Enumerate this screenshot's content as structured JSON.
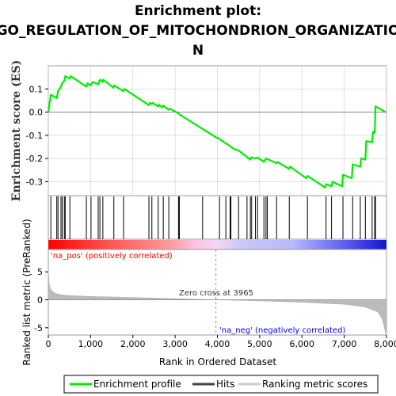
{
  "chart_data": {
    "type": "line",
    "title_lines": [
      "Enrichment plot:",
      "GO_REGULATION_OF_MITOCHONDRION_ORGANIZATIO",
      "N"
    ],
    "es_panel": {
      "ylabel": "Enrichment score (ES)",
      "ylim": [
        -0.36,
        0.2
      ],
      "yticks": [
        0.1,
        0.0,
        -0.1,
        -0.2,
        -0.3
      ],
      "ytick_labels": [
        "0.1",
        "0.0",
        "-0.1",
        "-0.2",
        "-0.3"
      ],
      "series_name": "Enrichment profile",
      "color": "#00ee00",
      "x": [
        0,
        60,
        200,
        230,
        300,
        330,
        380,
        400,
        500,
        530,
        900,
        930,
        1000,
        1050,
        1180,
        1220,
        1290,
        1300,
        1540,
        1560,
        1780,
        1800,
        2380,
        2400,
        2450,
        2470,
        2600,
        2620,
        2700,
        2720,
        2850,
        2870,
        3080,
        3100,
        3980,
        4000,
        4200,
        4250,
        4400,
        4500,
        4780,
        4800,
        4900,
        4950,
        5100,
        5150,
        5400,
        5420,
        5700,
        5720,
        6100,
        6130,
        6550,
        6570,
        6700,
        6720,
        6950,
        6970,
        7180,
        7200,
        7380,
        7400,
        7500,
        7520,
        7660,
        7680,
        7720,
        7740,
        7980
      ],
      "y": [
        0.0,
        0.075,
        0.06,
        0.09,
        0.11,
        0.125,
        0.135,
        0.155,
        0.145,
        0.155,
        0.11,
        0.125,
        0.115,
        0.13,
        0.12,
        0.14,
        0.13,
        0.14,
        0.105,
        0.115,
        0.09,
        0.1,
        0.03,
        0.04,
        0.035,
        0.04,
        0.025,
        0.032,
        0.02,
        0.028,
        0.01,
        0.015,
        -0.005,
        -0.01,
        -0.11,
        -0.11,
        -0.135,
        -0.14,
        -0.16,
        -0.165,
        -0.205,
        -0.195,
        -0.2,
        -0.195,
        -0.215,
        -0.2,
        -0.22,
        -0.215,
        -0.245,
        -0.235,
        -0.285,
        -0.275,
        -0.325,
        -0.31,
        -0.32,
        -0.3,
        -0.32,
        -0.27,
        -0.285,
        -0.225,
        -0.235,
        -0.2,
        -0.205,
        -0.125,
        -0.13,
        -0.085,
        -0.09,
        0.025,
        0.0
      ]
    },
    "hits": {
      "label": "Hits",
      "positions": [
        60,
        200,
        230,
        300,
        330,
        380,
        400,
        510,
        900,
        1010,
        1180,
        1220,
        1290,
        1550,
        1780,
        2380,
        2450,
        2600,
        2720,
        2850,
        3080,
        3100,
        3650,
        4050,
        4200,
        4300,
        4320,
        4500,
        4700,
        4780,
        4810,
        4900,
        4950,
        5100,
        5150,
        5180,
        5400,
        5700,
        6130,
        6570,
        6700,
        6970,
        7200,
        7380,
        7500,
        7660,
        7720,
        7740
      ]
    },
    "ranked_metric": {
      "ylabel": "Ranked list metric (PreRanked)",
      "ylim": [
        -6.3,
        9
      ],
      "yticks": [
        5,
        0,
        -5
      ],
      "ytick_labels": [
        "5",
        "0",
        "-5"
      ],
      "series_name": "Ranking metric scores",
      "x": [
        0,
        20,
        60,
        150,
        300,
        500,
        1000,
        2000,
        3000,
        3965,
        5000,
        6000,
        7000,
        7500,
        7800,
        7900,
        7950,
        7980
      ],
      "y": [
        5.2,
        2.8,
        1.8,
        1.2,
        0.9,
        0.75,
        0.6,
        0.42,
        0.2,
        0.0,
        -0.2,
        -0.45,
        -0.8,
        -1.3,
        -2.2,
        -3.5,
        -5.0,
        -6.0
      ]
    },
    "xlabel": "Rank in Ordered Dataset",
    "xlim": [
      0,
      8000
    ],
    "xticks": [
      0,
      1000,
      2000,
      3000,
      4000,
      5000,
      6000,
      7000,
      8000
    ],
    "xtick_labels": [
      "0",
      "1,000",
      "2,000",
      "3,000",
      "4,000",
      "5,000",
      "6,000",
      "7,000",
      "8,000"
    ],
    "zero_cross": 3965,
    "annotations": {
      "pos_label": "'na_pos' (positively correlated)",
      "neg_label": "'na_neg' (negatively correlated)",
      "zero_cross_label": "Zero cross at 3965"
    },
    "legend": {
      "placement": "bottom",
      "entries": [
        "Enrichment profile",
        "Hits",
        "Ranking metric scores"
      ]
    },
    "colors": {
      "profile": "#00ee00",
      "hits": "#000000",
      "positive": "#ff0000",
      "negative": "#0000ff",
      "metric_fill": "#bbbbbb",
      "grid": "#cccccc"
    }
  }
}
